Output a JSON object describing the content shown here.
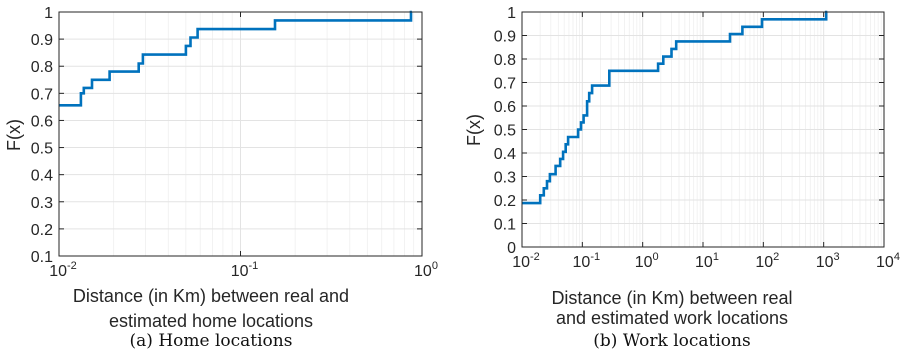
{
  "chart_data": [
    {
      "type": "line",
      "step": true,
      "panel": "a",
      "caption": "(a) Home locations",
      "xlabel": [
        "Distance (in Km) between real and",
        "estimated home locations"
      ],
      "ylabel": "",
      "x_scale": "log",
      "xlim": [
        0.01,
        1
      ],
      "ylim": [
        0.1,
        1
      ],
      "grid": true,
      "x_tick_base": "10",
      "x_ticks": [
        {
          "value": 0.01,
          "exp": "-2"
        },
        {
          "value": 0.1,
          "exp": "-1"
        },
        {
          "value": 1,
          "exp": "0"
        }
      ],
      "y_ticks": [
        {
          "value": 0.1,
          "label": "0.1"
        },
        {
          "value": 0.2,
          "label": "0.2"
        },
        {
          "value": 0.3,
          "label": "0.3"
        },
        {
          "value": 0.4,
          "label": "0.4"
        },
        {
          "value": 0.5,
          "label": "0.5"
        },
        {
          "value": 0.6,
          "label": "0.6"
        },
        {
          "value": 0.7,
          "label": "0.7"
        },
        {
          "value": 0.8,
          "label": "0.8"
        },
        {
          "value": 0.9,
          "label": "0.9"
        },
        {
          "value": 1,
          "label": "1"
        }
      ],
      "series": [
        {
          "color": "#0072bd",
          "x": [
            0.01,
            0.0132,
            0.0132,
            0.0137,
            0.0137,
            0.0152,
            0.0152,
            0.019,
            0.019,
            0.0275,
            0.0275,
            0.029,
            0.029,
            0.05,
            0.05,
            0.053,
            0.053,
            0.058,
            0.058,
            0.155,
            0.155,
            0.87,
            0.87,
            0.88
          ],
          "y": [
            0.656,
            0.656,
            0.7,
            0.7,
            0.72,
            0.72,
            0.75,
            0.75,
            0.78,
            0.78,
            0.81,
            0.81,
            0.843,
            0.843,
            0.875,
            0.875,
            0.906,
            0.906,
            0.937,
            0.937,
            0.969,
            0.969,
            1.0,
            1.0
          ]
        }
      ]
    },
    {
      "type": "line",
      "step": true,
      "panel": "b",
      "caption": "(b) Work locations",
      "xlabel": [
        "Distance (in Km) between real",
        "and estimated work locations"
      ],
      "ylabel": "F(x)",
      "x_scale": "log",
      "xlim": [
        0.01,
        10000
      ],
      "ylim": [
        0,
        1
      ],
      "grid": true,
      "x_tick_base": "10",
      "x_ticks": [
        {
          "value": 0.01,
          "exp": "-2"
        },
        {
          "value": 0.1,
          "exp": "-1"
        },
        {
          "value": 1,
          "exp": "0"
        },
        {
          "value": 10,
          "exp": "1"
        },
        {
          "value": 100,
          "exp": "2"
        },
        {
          "value": 1000,
          "exp": "3"
        },
        {
          "value": 10000,
          "exp": "4"
        }
      ],
      "y_ticks": [
        {
          "value": 0,
          "label": "0"
        },
        {
          "value": 0.1,
          "label": "0.1"
        },
        {
          "value": 0.2,
          "label": "0.2"
        },
        {
          "value": 0.3,
          "label": "0.3"
        },
        {
          "value": 0.4,
          "label": "0.4"
        },
        {
          "value": 0.5,
          "label": "0.5"
        },
        {
          "value": 0.6,
          "label": "0.6"
        },
        {
          "value": 0.7,
          "label": "0.7"
        },
        {
          "value": 0.8,
          "label": "0.8"
        },
        {
          "value": 0.9,
          "label": "0.9"
        },
        {
          "value": 1,
          "label": "1"
        }
      ],
      "series": [
        {
          "color": "#0072bd",
          "x": [
            0.01,
            0.02,
            0.02,
            0.023,
            0.023,
            0.026,
            0.026,
            0.029,
            0.029,
            0.036,
            0.036,
            0.043,
            0.043,
            0.048,
            0.048,
            0.053,
            0.053,
            0.058,
            0.058,
            0.085,
            0.085,
            0.095,
            0.095,
            0.105,
            0.105,
            0.12,
            0.12,
            0.13,
            0.13,
            0.145,
            0.145,
            0.28,
            0.28,
            1.8,
            1.8,
            2.2,
            2.2,
            3.0,
            3.0,
            3.6,
            3.6,
            28,
            28,
            45,
            45,
            95,
            95,
            1100,
            1100,
            1150
          ],
          "y": [
            0.187,
            0.187,
            0.22,
            0.22,
            0.25,
            0.25,
            0.28,
            0.28,
            0.31,
            0.31,
            0.345,
            0.345,
            0.375,
            0.375,
            0.405,
            0.405,
            0.437,
            0.437,
            0.468,
            0.468,
            0.5,
            0.5,
            0.53,
            0.53,
            0.56,
            0.56,
            0.62,
            0.62,
            0.655,
            0.655,
            0.687,
            0.687,
            0.75,
            0.75,
            0.78,
            0.78,
            0.81,
            0.81,
            0.843,
            0.843,
            0.875,
            0.875,
            0.906,
            0.906,
            0.937,
            0.937,
            0.969,
            0.969,
            1.0,
            1.0
          ]
        }
      ]
    }
  ]
}
